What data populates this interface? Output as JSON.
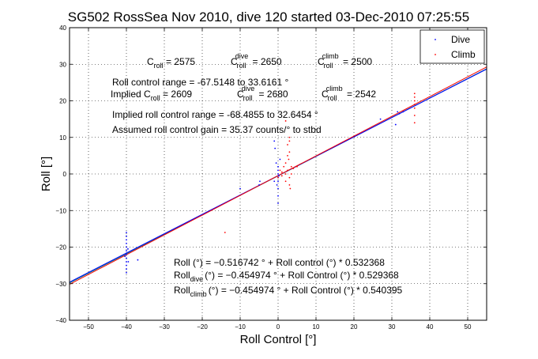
{
  "chart_data": {
    "type": "scatter",
    "title": "SG502 RossSea Nov 2010, dive 120 started 03-Dec-2010 07:25:55",
    "xlabel": "Roll Control [°]",
    "ylabel": "Roll [°]",
    "xlim": [
      -55,
      55
    ],
    "ylim": [
      -40,
      40
    ],
    "xticks": [
      -50,
      -40,
      -30,
      -20,
      -10,
      0,
      10,
      20,
      30,
      40,
      50
    ],
    "yticks": [
      -40,
      -30,
      -20,
      -10,
      0,
      10,
      20,
      30,
      40
    ],
    "grid": "dotted",
    "legend_position": "top-right",
    "colors": {
      "dive": "#0000ff",
      "climb": "#ff0000",
      "fit_all": "#008080",
      "fit_dive": "#0000ff",
      "fit_climb": "#ff0000"
    },
    "series": [
      {
        "name": "Dive",
        "marker": "point",
        "color": "#0000ff",
        "points": [
          [
            -40,
            -16
          ],
          [
            -40,
            -17
          ],
          [
            -40,
            -18
          ],
          [
            -40,
            -19
          ],
          [
            -40,
            -20
          ],
          [
            -40,
            -21
          ],
          [
            -40,
            -22
          ],
          [
            -40,
            -23
          ],
          [
            -40,
            -24
          ],
          [
            -40,
            -25
          ],
          [
            -40,
            -26
          ],
          [
            -40,
            -27
          ],
          [
            -39.6,
            -20.5
          ],
          [
            -40.4,
            -22.5
          ],
          [
            -39.5,
            -24
          ],
          [
            -37,
            -23.5
          ],
          [
            -10,
            -4
          ],
          [
            -5,
            -3
          ],
          [
            -4.8,
            -2
          ],
          [
            -1,
            -2
          ],
          [
            -0.5,
            3
          ],
          [
            -0.8,
            7
          ],
          [
            -1,
            9
          ],
          [
            0,
            -6
          ],
          [
            0,
            -8
          ],
          [
            0,
            -4
          ],
          [
            0,
            -2
          ],
          [
            0,
            -1
          ],
          [
            0,
            0
          ],
          [
            0,
            1
          ],
          [
            0,
            2
          ],
          [
            0.2,
            -0.5
          ],
          [
            0.5,
            4
          ],
          [
            -0.3,
            -3
          ],
          [
            27,
            15
          ],
          [
            31,
            13.5
          ],
          [
            31.5,
            17
          ],
          [
            32,
            16.5
          ],
          [
            33,
            17
          ]
        ]
      },
      {
        "name": "Climb",
        "marker": "point",
        "color": "#ff0000",
        "points": [
          [
            -14,
            -16
          ],
          [
            0,
            -1
          ],
          [
            0.5,
            1
          ],
          [
            1,
            0.5
          ],
          [
            1,
            -0.5
          ],
          [
            1.5,
            2
          ],
          [
            2,
            0
          ],
          [
            2,
            3
          ],
          [
            2,
            -2
          ],
          [
            2.5,
            1
          ],
          [
            2.5,
            5
          ],
          [
            2.5,
            8
          ],
          [
            3,
            10
          ],
          [
            3,
            9
          ],
          [
            3,
            6
          ],
          [
            2.8,
            4
          ],
          [
            3,
            -1
          ],
          [
            3,
            -3
          ],
          [
            3.2,
            -4
          ],
          [
            3.5,
            2
          ],
          [
            3.5,
            0
          ],
          [
            4,
            1.5
          ],
          [
            5,
            2
          ],
          [
            2,
            14.5
          ],
          [
            36,
            14
          ],
          [
            36,
            16
          ],
          [
            36,
            18
          ],
          [
            36,
            19
          ],
          [
            36,
            20
          ],
          [
            36,
            21
          ],
          [
            36,
            22
          ]
        ]
      }
    ],
    "fit_lines": [
      {
        "name": "Roll (°) = -0.516742 ° + Roll control (°) * 0.532368",
        "intercept": -0.516742,
        "slope": 0.532368,
        "color": "#008080"
      },
      {
        "name": "Roll dive (°) = -0.454974 ° + Roll Control (°) * 0.529368",
        "intercept": -0.454974,
        "slope": 0.529368,
        "color": "#0000ff"
      },
      {
        "name": "Roll climb (°) = -0.454974 ° + Roll Control (°) * 0.540395",
        "intercept": -0.454974,
        "slope": 0.540395,
        "color": "#ff0000"
      }
    ],
    "annotations": {
      "c_roll": "2575",
      "c_roll_dive": "2650",
      "c_roll_climb": "2500",
      "roll_control_range": "Roll control range = -67.5148 to 33.6161 °",
      "implied_c_roll": "2609",
      "implied_c_roll_dive": "2680",
      "implied_c_roll_climb": "2542",
      "implied_range": "Implied roll control range = -68.4855 to 32.6454 °",
      "gain": "Assumed roll control gain = 35.37 counts/° to stbd",
      "eq_all": "Roll (°) = −0.516742 ° + Roll control (°) * 0.532368",
      "eq_dive_lhs": "Roll",
      "eq_dive_sub": "dive",
      "eq_dive_rhs": "(°) = −0.454974 ° + Roll Control (°) * 0.529368",
      "eq_climb_lhs": "Roll",
      "eq_climb_sub": "climb",
      "eq_climb_rhs": "(°) = −0.454974 ° + Roll Control (°) * 0.540395"
    }
  }
}
